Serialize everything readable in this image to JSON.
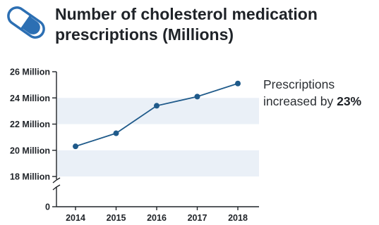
{
  "title": {
    "line1": "Number of cholesterol medication",
    "line2": "prescriptions (Millions)"
  },
  "annotation": {
    "line1": "Prescriptions",
    "line2_prefix": "increased by ",
    "line2_value": "23%"
  },
  "icon": "pill-capsule-icon",
  "colors": {
    "line": "#1f5a8a",
    "band": "#eaf0f7",
    "axis": "#1f2328",
    "icon": "#2c6fb3"
  },
  "chart_data": {
    "type": "line",
    "title": "Number of cholesterol medication prescriptions (Millions)",
    "xlabel": "",
    "ylabel": "",
    "categories": [
      "2014",
      "2015",
      "2016",
      "2017",
      "2018"
    ],
    "series": [
      {
        "values": [
          20.3,
          21.3,
          23.4,
          24.1,
          25.1
        ]
      }
    ],
    "ylim": [
      18,
      26
    ],
    "y_axis_break": true,
    "y_ticks": [
      {
        "value": 18,
        "label": "18 Million"
      },
      {
        "value": 20,
        "label": "20 Million"
      },
      {
        "value": 22,
        "label": "22 Million"
      },
      {
        "value": 24,
        "label": "24 Million"
      },
      {
        "value": 26,
        "label": "26 Million"
      }
    ],
    "zero_tick_label": "0",
    "shaded_bands": [
      [
        18,
        20
      ],
      [
        22,
        24
      ]
    ],
    "grid": false,
    "legend": "none"
  }
}
